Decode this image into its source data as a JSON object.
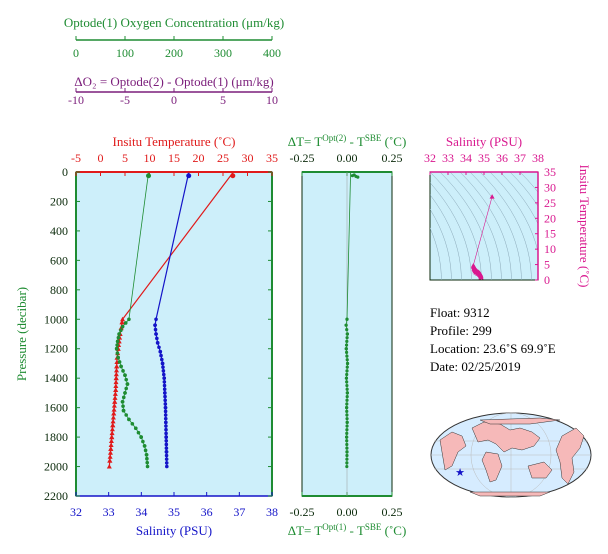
{
  "colors": {
    "plot_bg": "#cdeffa",
    "oxygen": "#1e8c32",
    "temperature": "#e01b1b",
    "salinity": "#1414c8",
    "delta": "#7b1e7b",
    "ts": "#d9188f",
    "axis_dark": "#0b2a0b",
    "map_land": "#f6b9b9",
    "map_ocean": "#d6ecff"
  },
  "top_axes": {
    "oxygen": {
      "label": "Optode(1) Oxygen Concentration (μm/kg)",
      "ticks": [
        "0",
        "100",
        "200",
        "300",
        "400"
      ]
    },
    "delta_o2": {
      "label": "ΔO₂ = Optode(2) - Optode(1)   (μm/kg)",
      "ticks": [
        "-10",
        "-5",
        "0",
        "5",
        "10"
      ]
    }
  },
  "info": {
    "float": "Float:  9312",
    "profile": "Profile:  299",
    "location": "Location:  23.6˚S  69.9˚E",
    "date": "Date:  02/25/2019"
  },
  "chart_data": [
    {
      "type": "line",
      "panel": "profiles",
      "y_axis": {
        "label": "Pressure (decibar)",
        "ticks": [
          "0",
          "200",
          "400",
          "600",
          "800",
          "1000",
          "1200",
          "1400",
          "1600",
          "1800",
          "2000",
          "2200"
        ],
        "range": [
          2200,
          0
        ],
        "inverted": true
      },
      "x_axes": {
        "temperature": {
          "label": "Insitu Temperature (˚C)",
          "ticks": [
            "-5",
            "0",
            "5",
            "10",
            "15",
            "20",
            "25",
            "30",
            "35"
          ],
          "range": [
            -5,
            35
          ]
        },
        "salinity": {
          "label": "Salinity (PSU)",
          "ticks": [
            "32",
            "33",
            "34",
            "35",
            "36",
            "37",
            "38"
          ],
          "range": [
            32,
            38
          ]
        },
        "oxygen": {
          "range": [
            0,
            400
          ]
        }
      },
      "series": [
        {
          "key": "temperature",
          "points": [
            [
              27,
              5
            ],
            [
              4.5,
              1000
            ],
            [
              4.4,
              1020
            ],
            [
              4.2,
              1060
            ],
            [
              4.0,
              1100
            ],
            [
              3.8,
              1150
            ],
            [
              3.6,
              1200
            ],
            [
              3.4,
              1260
            ],
            [
              3.3,
              1320
            ],
            [
              3.2,
              1400
            ],
            [
              3.1,
              1480
            ],
            [
              2.9,
              1560
            ],
            [
              2.7,
              1640
            ],
            [
              2.5,
              1720
            ],
            [
              2.3,
              1800
            ],
            [
              2.1,
              1880
            ],
            [
              1.9,
              1960
            ],
            [
              1.8,
              2000
            ]
          ]
        },
        {
          "key": "salinity",
          "points": [
            [
              35.45,
              5
            ],
            [
              34.45,
              1000
            ],
            [
              34.42,
              1040
            ],
            [
              34.45,
              1100
            ],
            [
              34.5,
              1160
            ],
            [
              34.58,
              1220
            ],
            [
              34.65,
              1300
            ],
            [
              34.7,
              1400
            ],
            [
              34.72,
              1500
            ],
            [
              34.74,
              1600
            ],
            [
              34.75,
              1700
            ],
            [
              34.76,
              1800
            ],
            [
              34.77,
              1900
            ],
            [
              34.78,
              2000
            ]
          ]
        },
        {
          "key": "oxygen",
          "points": [
            [
              148,
              5
            ],
            [
              108,
              1000
            ],
            [
              95,
              1050
            ],
            [
              88,
              1100
            ],
            [
              85,
              1150
            ],
            [
              83,
              1200
            ],
            [
              86,
              1260
            ],
            [
              92,
              1320
            ],
            [
              100,
              1380
            ],
            [
              105,
              1440
            ],
            [
              100,
              1500
            ],
            [
              95,
              1560
            ],
            [
              97,
              1620
            ],
            [
              108,
              1680
            ],
            [
              122,
              1740
            ],
            [
              133,
              1800
            ],
            [
              140,
              1860
            ],
            [
              144,
              1920
            ],
            [
              146,
              2000
            ]
          ]
        }
      ]
    },
    {
      "type": "line",
      "panel": "delta_t",
      "x_axes": {
        "top_label": "ΔT= TOpt(2) - TSBE (˚C)",
        "bottom_label": "ΔT= TOpt(1) - TSBE (˚C)",
        "ticks": [
          "-0.25",
          "0.00",
          "0.25"
        ],
        "range": [
          -0.25,
          0.25
        ]
      },
      "y_range": [
        2200,
        0
      ],
      "series": [
        {
          "key": "delta_t",
          "points": [
            [
              0.02,
              5
            ],
            [
              0.0,
              1000
            ],
            [
              -0.005,
              1040
            ],
            [
              0.002,
              1100
            ],
            [
              -0.004,
              1200
            ],
            [
              0.003,
              1300
            ],
            [
              -0.003,
              1400
            ],
            [
              0.002,
              1500
            ],
            [
              -0.002,
              1600
            ],
            [
              0.001,
              1700
            ],
            [
              -0.002,
              1800
            ],
            [
              0.0,
              1900
            ],
            [
              -0.001,
              2000
            ]
          ]
        },
        {
          "key": "delta_t_top",
          "points": [
            [
              0.04,
              20
            ],
            [
              0.05,
              30
            ],
            [
              0.06,
              35
            ],
            [
              0.03,
              25
            ]
          ]
        }
      ]
    },
    {
      "type": "scatter",
      "panel": "ts",
      "x_axis": {
        "label": "Salinity (PSU)",
        "ticks": [
          "32",
          "33",
          "34",
          "35",
          "36",
          "37",
          "38"
        ],
        "range": [
          32,
          38
        ]
      },
      "y_axis": {
        "label": "Insitu Temperature (˚C)",
        "ticks": [
          "0",
          "5",
          "10",
          "15",
          "20",
          "25",
          "30",
          "35"
        ],
        "range": [
          0,
          35
        ]
      },
      "points": [
        [
          35.45,
          27
        ],
        [
          34.4,
          4.6
        ],
        [
          34.42,
          4.2
        ],
        [
          34.45,
          3.8
        ],
        [
          34.5,
          3.4
        ],
        [
          34.6,
          3.0
        ],
        [
          34.7,
          2.6
        ],
        [
          34.75,
          2.2
        ],
        [
          34.78,
          1.8
        ]
      ]
    }
  ]
}
